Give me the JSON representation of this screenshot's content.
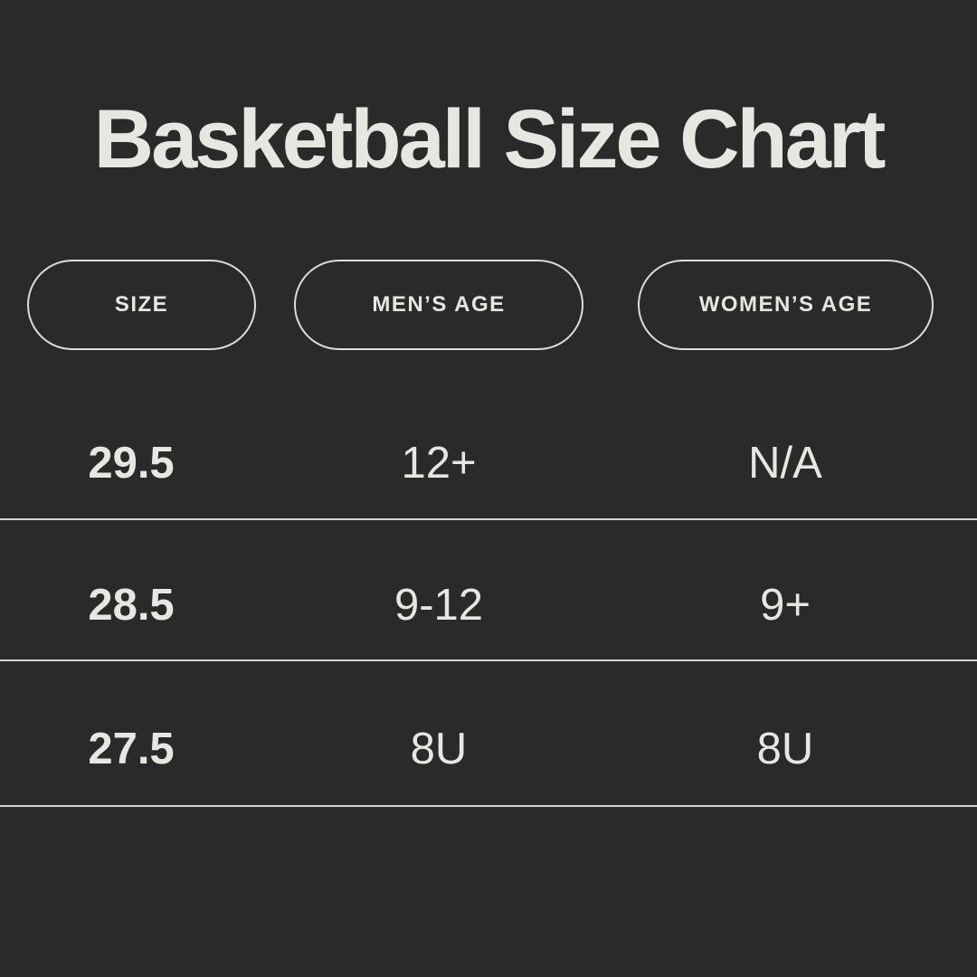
{
  "page": {
    "background_color": "#2a2a2a",
    "text_color": "#e8e6e1",
    "divider_color": "#d5d3ce",
    "pill_border_color": "#dedcd7"
  },
  "title": "Basketball Size Chart",
  "chart_data": {
    "type": "table",
    "title": "Basketball Size Chart",
    "columns": [
      "SIZE",
      "MEN’S AGE",
      "WOMEN’S AGE"
    ],
    "rows": [
      [
        "29.5",
        "12+",
        "N/A"
      ],
      [
        "28.5",
        "9-12",
        "9+"
      ],
      [
        "27.5",
        "8U",
        "8U"
      ]
    ]
  }
}
